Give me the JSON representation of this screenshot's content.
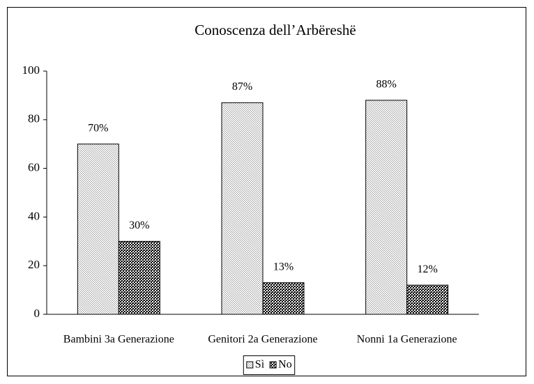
{
  "chart_data": {
    "type": "bar",
    "title": "Conoscenza dell’Arbëreshë",
    "categories": [
      "Bambini 3a Generazione",
      "Genitori  2a Generazione",
      "Nonni  1a Generazione"
    ],
    "series": [
      {
        "name": "Sì",
        "color": "#9a9a9a",
        "values": [
          70,
          87,
          88
        ],
        "value_labels": [
          "70%",
          "87%",
          "88%"
        ]
      },
      {
        "name": "No",
        "color": "#000000",
        "values": [
          30,
          13,
          12
        ],
        "value_labels": [
          "30%",
          "13%",
          "12%"
        ]
      }
    ],
    "ylim": [
      0,
      100
    ],
    "yticks": [
      0,
      20,
      40,
      60,
      80,
      100
    ],
    "grid": false,
    "legend": "bottom"
  }
}
